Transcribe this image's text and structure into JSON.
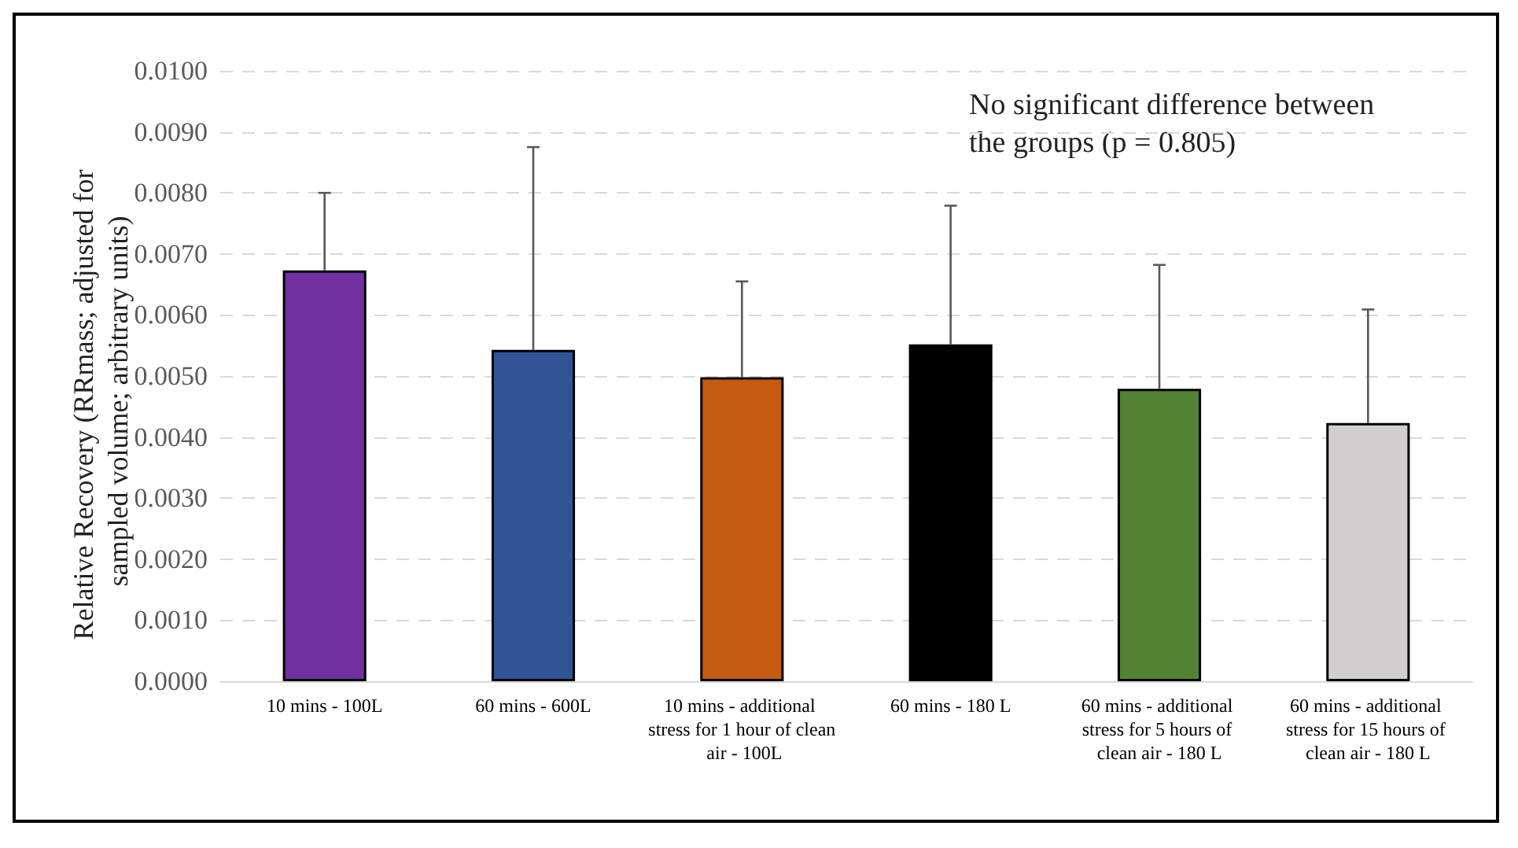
{
  "chart_data": {
    "type": "bar",
    "ylabel": "Relative Recovery (RRmass; adjusted for sampled volume; arbitrary units)",
    "categories": [
      "10 mins - 100L",
      "60 mins - 600L",
      "10 mins - additional stress for 1 hour of clean air - 100L",
      "60 mins - 180 L",
      "60 mins - additional stress for 5 hours of clean air - 180 L",
      "60 mins - additional stress for 15 hours of clean air - 180 L"
    ],
    "values": [
      0.00673,
      0.00543,
      0.00498,
      0.00552,
      0.00479,
      0.00423
    ],
    "colors": [
      "#7030a0",
      "#2f5597",
      "#c55a11",
      "#000000",
      "#548235",
      "#d0cece"
    ],
    "errors": [
      [
        0.00673,
        0.008
      ],
      [
        0.00543,
        0.00875
      ],
      [
        0.00498,
        0.00655
      ],
      [
        0.00552,
        0.00779
      ],
      [
        0.00479,
        0.00682
      ],
      [
        0.00423,
        0.00609
      ]
    ],
    "ylim": [
      0,
      0.01
    ],
    "yticks": [
      {
        "value": 0,
        "label": "0.0000"
      },
      {
        "value": 0.001,
        "label": "0.0010"
      },
      {
        "value": 0.002,
        "label": "0.0020"
      },
      {
        "value": 0.003,
        "label": "0.0030"
      },
      {
        "value": 0.004,
        "label": "0.0040"
      },
      {
        "value": 0.005,
        "label": "0.0050"
      },
      {
        "value": 0.006,
        "label": "0.0060"
      },
      {
        "value": 0.007,
        "label": "0.0070"
      },
      {
        "value": 0.008,
        "label": "0.0080"
      },
      {
        "value": 0.009,
        "label": "0.0090"
      },
      {
        "value": 0.01,
        "label": "0.0100"
      }
    ],
    "grid": "y",
    "annotations": [
      "No significant difference between the groups (p = 0.805)"
    ]
  }
}
